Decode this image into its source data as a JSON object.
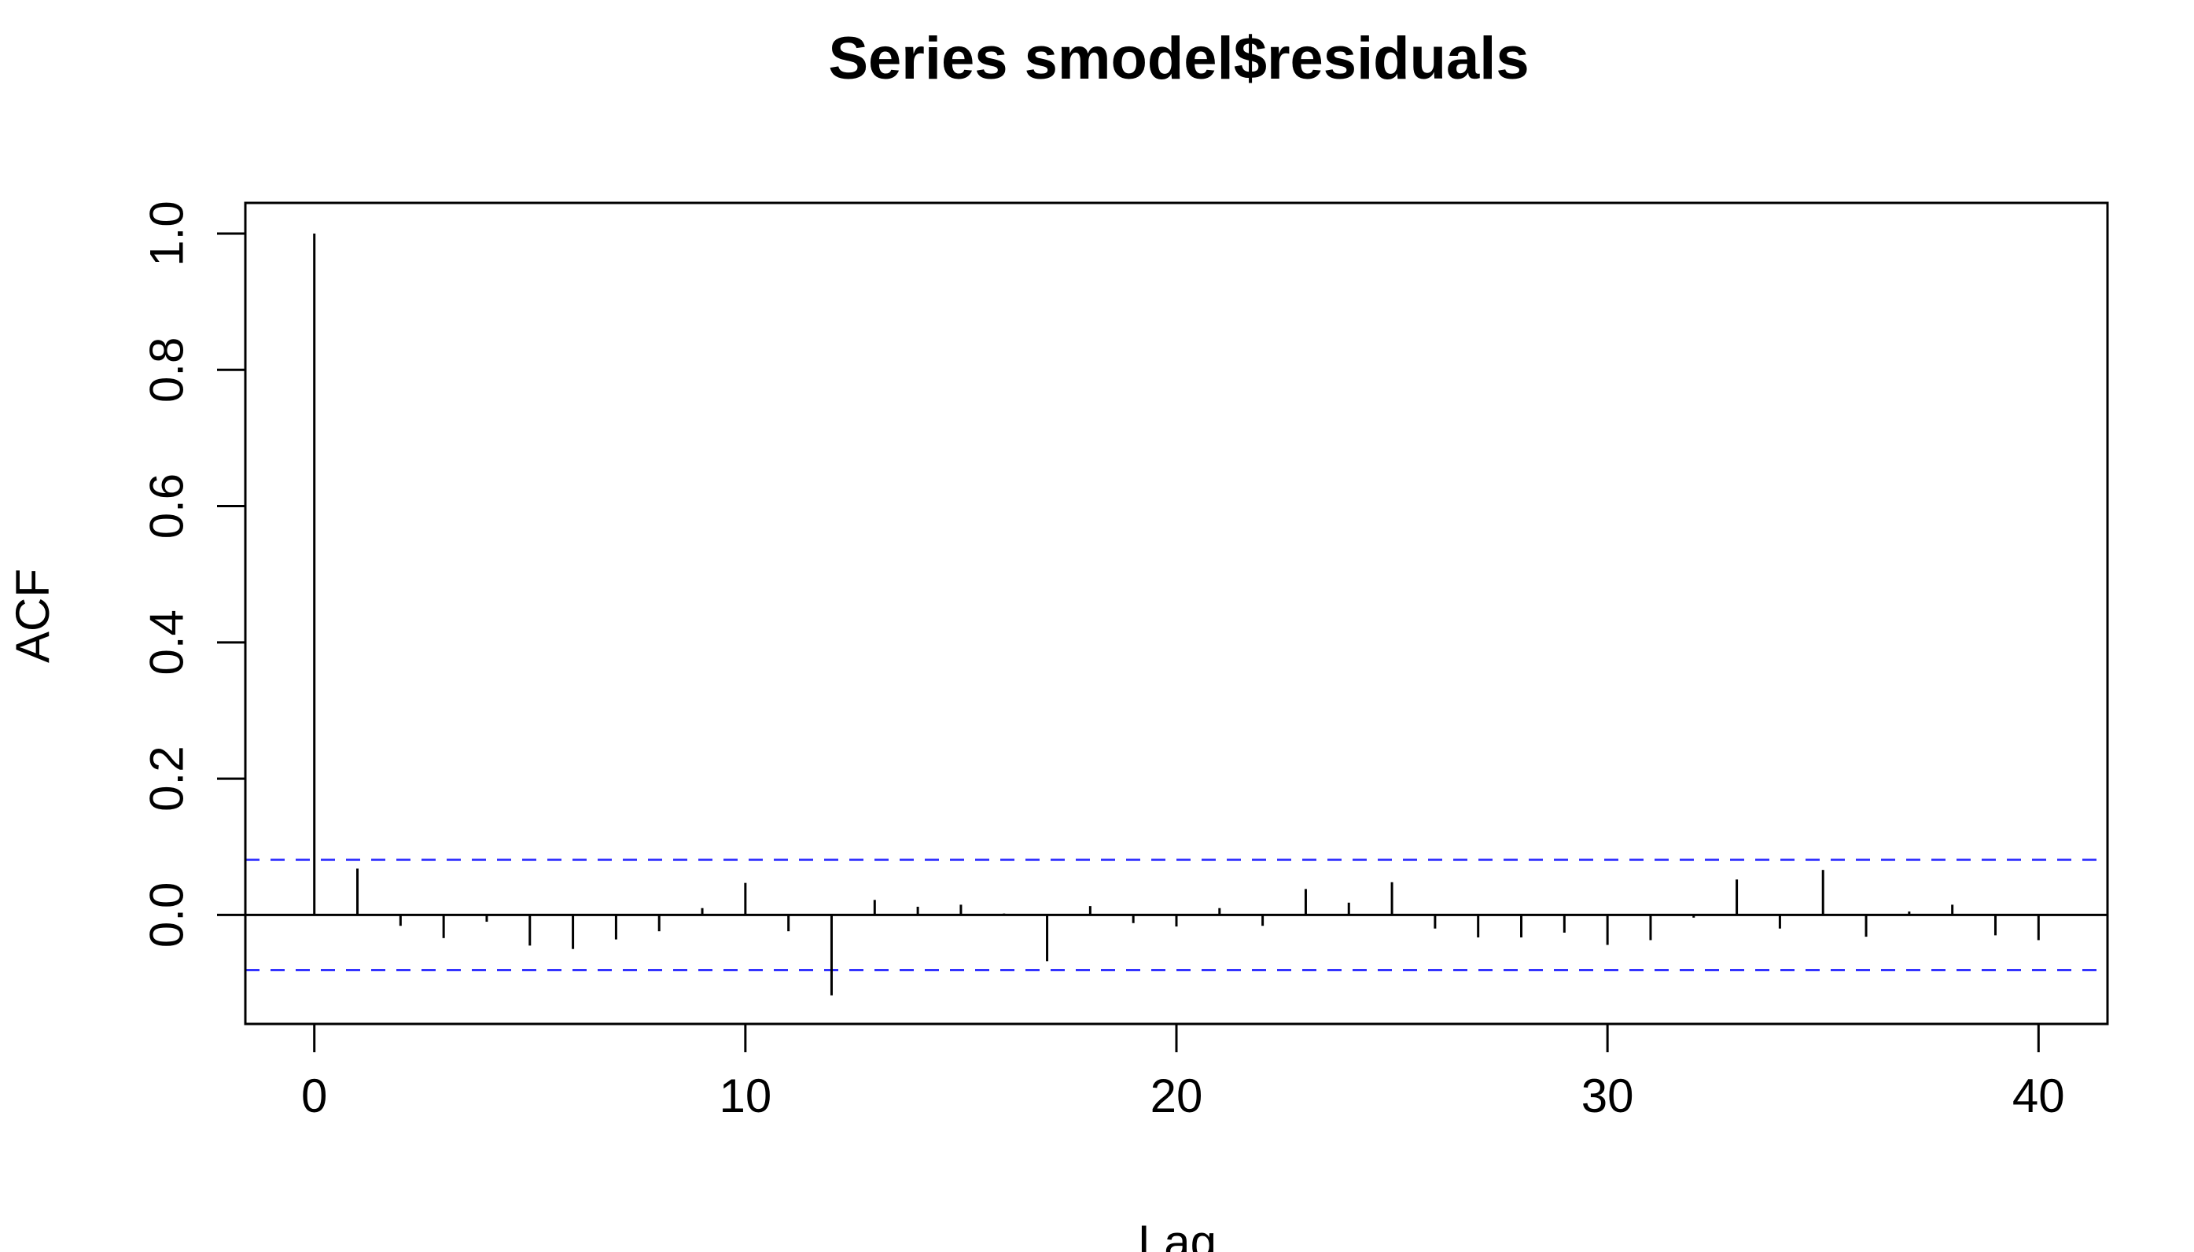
{
  "chart_data": {
    "type": "bar",
    "title": "Series  smodel$residuals",
    "xlabel": "Lag",
    "ylabel": "ACF",
    "xlim": [
      -1.6,
      41.6
    ],
    "ylim": [
      -0.16,
      1.045
    ],
    "x_ticks": [
      0,
      10,
      20,
      30,
      40
    ],
    "x_tick_labels": [
      "0",
      "10",
      "20",
      "30",
      "40"
    ],
    "y_ticks": [
      0.0,
      0.2,
      0.4,
      0.6,
      0.8,
      1.0
    ],
    "y_tick_labels": [
      "0.0",
      "0.2",
      "0.4",
      "0.6",
      "0.8",
      "1.0"
    ],
    "confidence_bound": 0.081,
    "lags": [
      0,
      1,
      2,
      3,
      4,
      5,
      6,
      7,
      8,
      9,
      10,
      11,
      12,
      13,
      14,
      15,
      16,
      17,
      18,
      19,
      20,
      21,
      22,
      23,
      24,
      25,
      26,
      27,
      28,
      29,
      30,
      31,
      32,
      33,
      34,
      35,
      36,
      37,
      38,
      39,
      40
    ],
    "values": [
      1.0,
      0.068,
      -0.016,
      -0.034,
      -0.01,
      -0.045,
      -0.05,
      -0.036,
      -0.024,
      0.01,
      0.047,
      -0.024,
      -0.118,
      0.022,
      0.012,
      0.015,
      0.002,
      -0.068,
      0.013,
      -0.012,
      -0.017,
      0.01,
      -0.016,
      0.038,
      0.018,
      0.048,
      -0.02,
      -0.033,
      -0.033,
      -0.026,
      -0.044,
      -0.037,
      -0.004,
      0.052,
      -0.02,
      0.066,
      -0.032,
      0.005,
      0.015,
      -0.03,
      -0.037
    ],
    "colors": {
      "bars": "#000000",
      "confidence": "#3333ff",
      "axes": "#000000"
    }
  }
}
